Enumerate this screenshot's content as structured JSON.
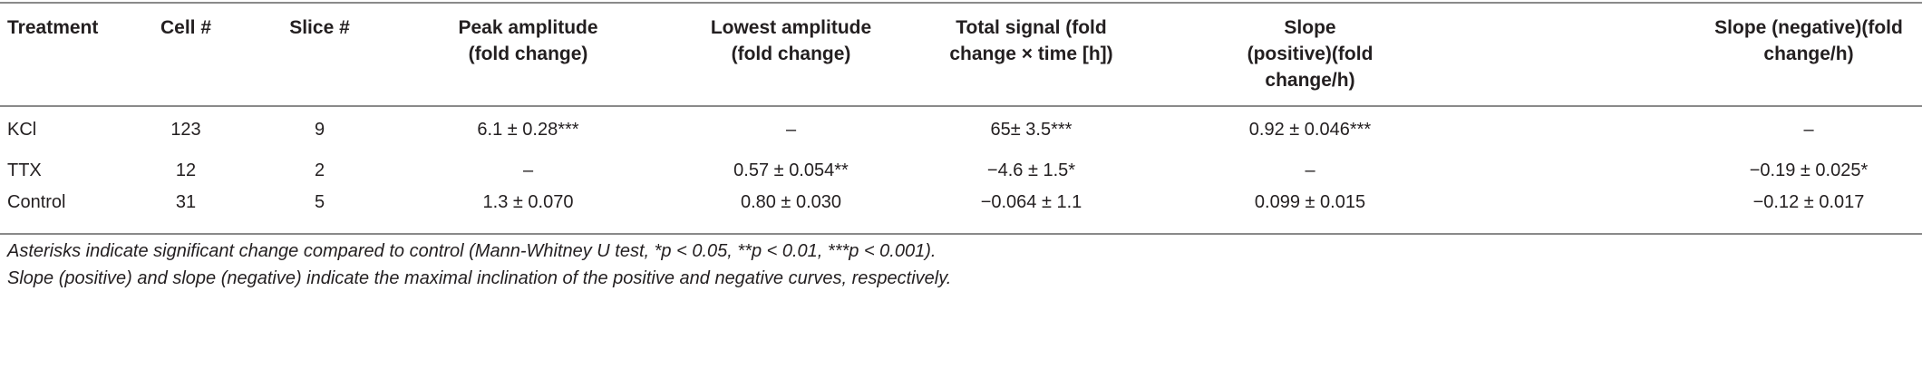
{
  "table": {
    "headers": [
      "Treatment",
      "Cell #",
      "Slice #",
      "Peak amplitude (fold change)",
      "Lowest amplitude (fold change)",
      "Total signal (fold change × time [h])",
      "Slope (positive)(fold change/h)",
      "Slope (negative)(fold change/h)"
    ],
    "rows": [
      [
        "KCl",
        "123",
        "9",
        "6.1 ± 0.28***",
        "–",
        "65± 3.5***",
        "0.92 ± 0.046***",
        "–"
      ],
      [
        "TTX",
        "12",
        "2",
        "–",
        "0.57 ± 0.054**",
        "−4.6 ± 1.5*",
        "–",
        "−0.19 ± 0.025*"
      ],
      [
        "Control",
        "31",
        "5",
        "1.3 ± 0.070",
        "0.80 ± 0.030",
        "−0.064 ± 1.1",
        "0.099 ± 0.015",
        "−0.12 ± 0.017"
      ]
    ]
  },
  "footnotes": [
    "Asterisks indicate significant change compared to control (Mann-Whitney U test, *p < 0.05, **p < 0.01, ***p < 0.001).",
    "Slope (positive) and slope (negative) indicate the maximal inclination of the positive and negative curves, respectively."
  ]
}
